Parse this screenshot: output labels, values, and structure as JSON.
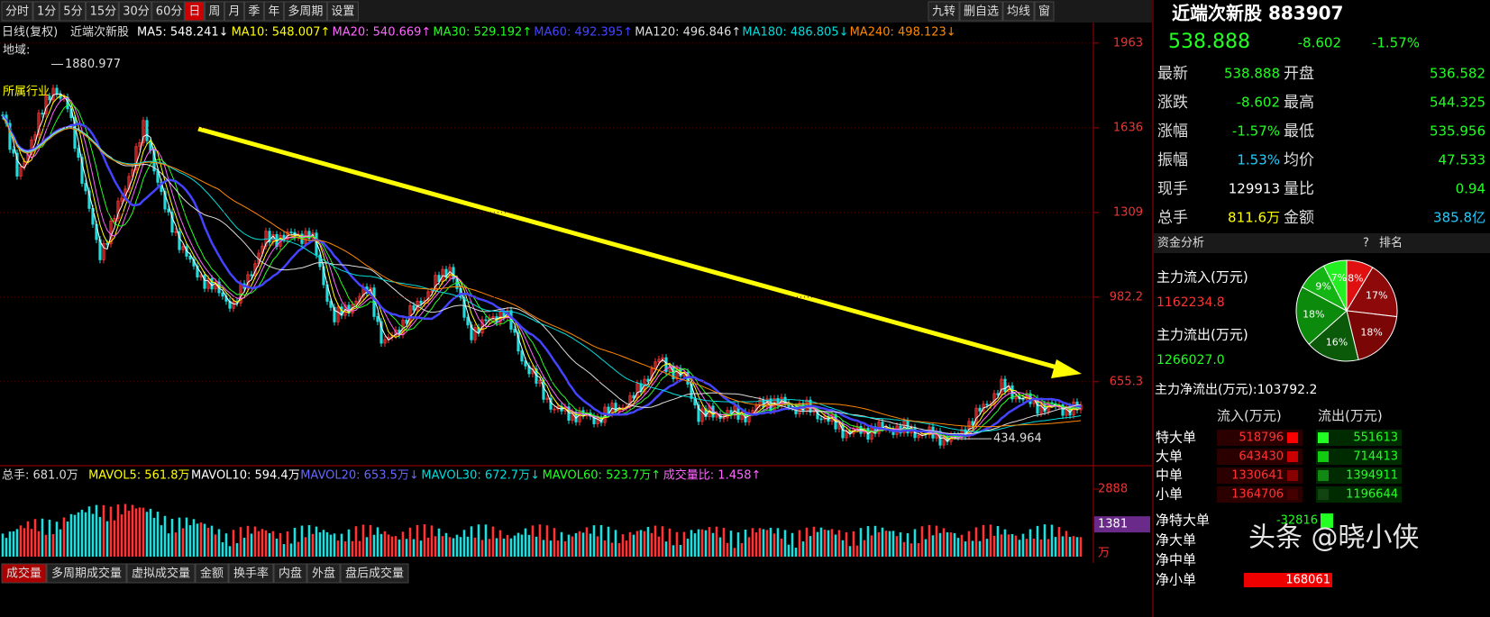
{
  "toolbar": {
    "tabs": [
      "分时",
      "1分",
      "5分",
      "15分",
      "30分",
      "60分",
      "日",
      "周",
      "月",
      "季",
      "年",
      "多周期",
      "设置"
    ],
    "tools": [
      "九转",
      "删自选",
      "均线",
      "窗"
    ]
  },
  "ma_legend": {
    "prefix": "日线(复权)",
    "name": "近端次新股",
    "items": [
      "MA5: 548.241↓",
      "MA10: 548.007↑",
      "MA20: 540.669↑",
      "MA30: 529.192↑",
      "MA60: 492.395↑",
      "MA120: 496.846↑",
      "MA180: 486.805↓",
      "MA240: 498.123↓"
    ]
  },
  "price_chart": {
    "region_label": "地域:",
    "industry_label": "所属行业",
    "high": 1880.977,
    "low": 434.964,
    "ylim": [
      338,
      1973
    ],
    "yticks": [
      655.3,
      982.2,
      1309,
      1636,
      1963
    ]
  },
  "volume_legend": [
    "总手: 681.0万",
    "MAVOL5: 561.8万",
    "MAVOL10: 594.4万",
    "MAVOL20: 653.5万↓",
    "MAVOL30: 672.7万↓",
    "MAVOL60: 523.7万↑",
    "成交量比: 1.458↑"
  ],
  "volume_axis": {
    "ylim": [
      0,
      3004
    ],
    "ticks": [
      2888,
      1381
    ],
    "unit": "万"
  },
  "bottom_tabs": [
    "成交量",
    "多周期成交量",
    "虚拟成交量",
    "金额",
    "换手率",
    "内盘",
    "外盘",
    "盘后成交量"
  ],
  "quote": {
    "title": "近端次新股 883907",
    "price": "538.888",
    "change": "-8.602",
    "pct": "-1.57%"
  },
  "stats": [
    [
      "最新",
      "538.888",
      "开盘",
      "536.582"
    ],
    [
      "涨跌",
      "-8.602",
      "最高",
      "544.325"
    ],
    [
      "涨幅",
      "-1.57%",
      "最低",
      "535.956"
    ],
    [
      "振幅",
      "1.53%",
      "均价",
      "47.533"
    ],
    [
      "现手",
      "129913",
      "量比",
      "0.94"
    ],
    [
      "总手",
      "811.6万",
      "金额",
      "385.8亿"
    ]
  ],
  "fund": {
    "title": "资金分析",
    "help": "?",
    "rank": "排名",
    "inflow_label": "主力流入(万元)",
    "inflow": "1162234.8",
    "outflow_label": "主力流出(万元)",
    "outflow": "1266027.0",
    "net": "主力净流出(万元):103792.2"
  },
  "pie": {
    "values": [
      8,
      17,
      18,
      16,
      18,
      9,
      7
    ],
    "value_labels": [
      "8%",
      "17%",
      "18%",
      "16%",
      "18%",
      "9%",
      "7%"
    ],
    "colors": [
      "#e01010",
      "#8e0a0a",
      "#7a0606",
      "#0a5a0a",
      "#0c8a0c",
      "#14b414",
      "#22ee22"
    ]
  },
  "flow": {
    "header": [
      "流入(万元)",
      "流出(万元)"
    ],
    "rows": [
      [
        "特大单",
        "518796",
        "551613"
      ],
      [
        "大单",
        "643430",
        "714413"
      ],
      [
        "中单",
        "1330641",
        "1394911"
      ],
      [
        "小单",
        "1364706",
        "1196644"
      ]
    ],
    "net_rows": [
      [
        "净特大单",
        "-32816"
      ],
      [
        "净大单"
      ],
      [
        "净中单"
      ],
      [
        "净小单",
        "168061"
      ]
    ]
  },
  "watermark": "头条 @晓小侠"
}
